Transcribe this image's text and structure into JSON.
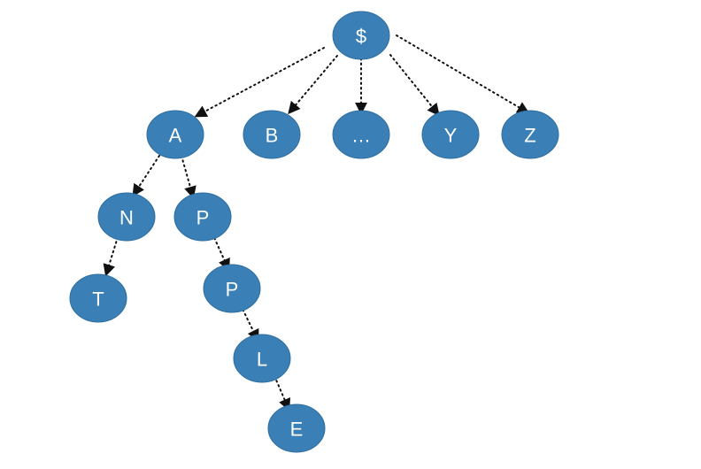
{
  "nodes": [
    {
      "id": "root",
      "label": "$"
    },
    {
      "id": "a",
      "label": "A"
    },
    {
      "id": "b",
      "label": "B"
    },
    {
      "id": "dots",
      "label": "…"
    },
    {
      "id": "y",
      "label": "Y"
    },
    {
      "id": "z",
      "label": "Z"
    },
    {
      "id": "n",
      "label": "N"
    },
    {
      "id": "p1",
      "label": "P"
    },
    {
      "id": "t",
      "label": "T"
    },
    {
      "id": "p2",
      "label": "P"
    },
    {
      "id": "l",
      "label": "L"
    },
    {
      "id": "e",
      "label": "E"
    }
  ],
  "edges": [
    {
      "from": "root",
      "to": "a"
    },
    {
      "from": "root",
      "to": "b"
    },
    {
      "from": "root",
      "to": "dots"
    },
    {
      "from": "root",
      "to": "y"
    },
    {
      "from": "root",
      "to": "z"
    },
    {
      "from": "a",
      "to": "n"
    },
    {
      "from": "a",
      "to": "p1"
    },
    {
      "from": "n",
      "to": "t"
    },
    {
      "from": "p1",
      "to": "p2"
    },
    {
      "from": "p2",
      "to": "l"
    },
    {
      "from": "l",
      "to": "e"
    }
  ],
  "colors": {
    "node_fill": "#3a7fb5",
    "edge": "#111111",
    "label": "#ffffff"
  }
}
